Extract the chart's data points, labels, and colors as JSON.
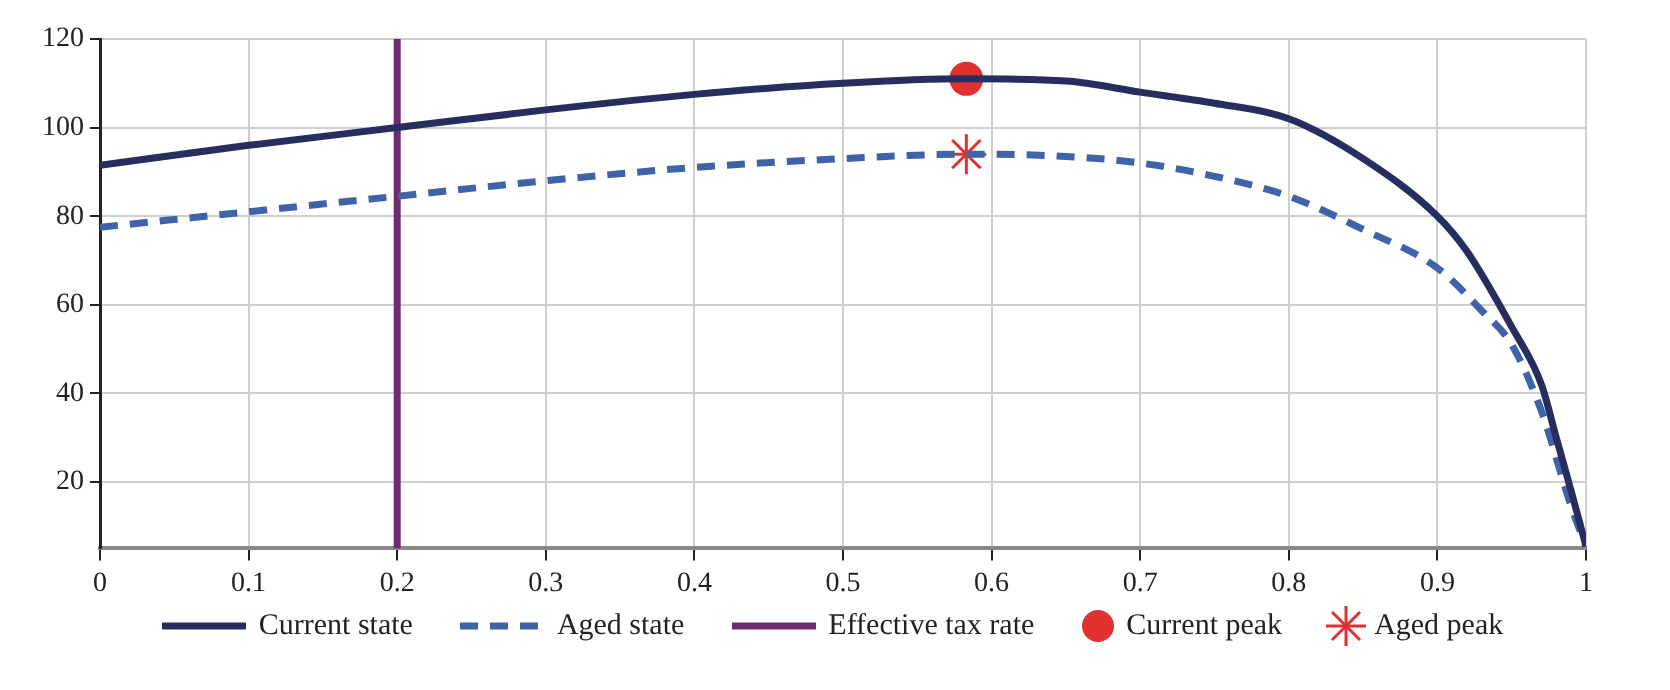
{
  "chart_data": {
    "type": "line",
    "xlim": [
      0,
      1
    ],
    "xticks": [
      0,
      0.1,
      0.2,
      0.3,
      0.4,
      0.5,
      0.6,
      0.7,
      0.8,
      0.9,
      1
    ],
    "ylim": [
      5,
      120
    ],
    "yticks": [
      20,
      40,
      60,
      80,
      100,
      120
    ],
    "grid": true,
    "legend": "bottom",
    "series": [
      {
        "name": "Current state",
        "color": "#272d5e",
        "line_style": "solid",
        "marker": "none",
        "x": [
          0,
          0.1,
          0.2,
          0.3,
          0.4,
          0.5,
          0.583,
          0.65,
          0.7,
          0.75,
          0.8,
          0.85,
          0.9,
          0.92,
          0.95,
          0.97,
          0.98,
          0.99,
          1
        ],
        "values": [
          91.5,
          96,
          100,
          104,
          107.5,
          110,
          111,
          110.5,
          108,
          105.5,
          102,
          93,
          80,
          72,
          55,
          42,
          30,
          18,
          5.5
        ]
      },
      {
        "name": "Aged state",
        "color": "#3f63a8",
        "line_style": "dashed",
        "marker": "none",
        "x": [
          0,
          0.1,
          0.2,
          0.3,
          0.4,
          0.5,
          0.583,
          0.65,
          0.7,
          0.75,
          0.8,
          0.85,
          0.9,
          0.93,
          0.95,
          0.97,
          0.99,
          1
        ],
        "values": [
          77.5,
          81,
          84.5,
          88,
          91,
          93,
          94,
          93.5,
          92,
          89,
          84.5,
          77,
          68.3,
          58.6,
          51,
          36,
          14.5,
          5.5
        ]
      },
      {
        "name": "Effective tax rate",
        "color": "#6e2a70",
        "line_style": "solid",
        "marker": "none",
        "x": [
          0.2,
          0.2
        ],
        "values": [
          5,
          120
        ]
      },
      {
        "name": "Current peak",
        "type": "scatter",
        "color": "#e03030",
        "marker": "circle",
        "x": [
          0.583
        ],
        "values": [
          111
        ]
      },
      {
        "name": "Aged peak",
        "type": "scatter",
        "color": "#e03030",
        "marker": "cross",
        "x": [
          0.583
        ],
        "values": [
          94
        ]
      }
    ]
  }
}
